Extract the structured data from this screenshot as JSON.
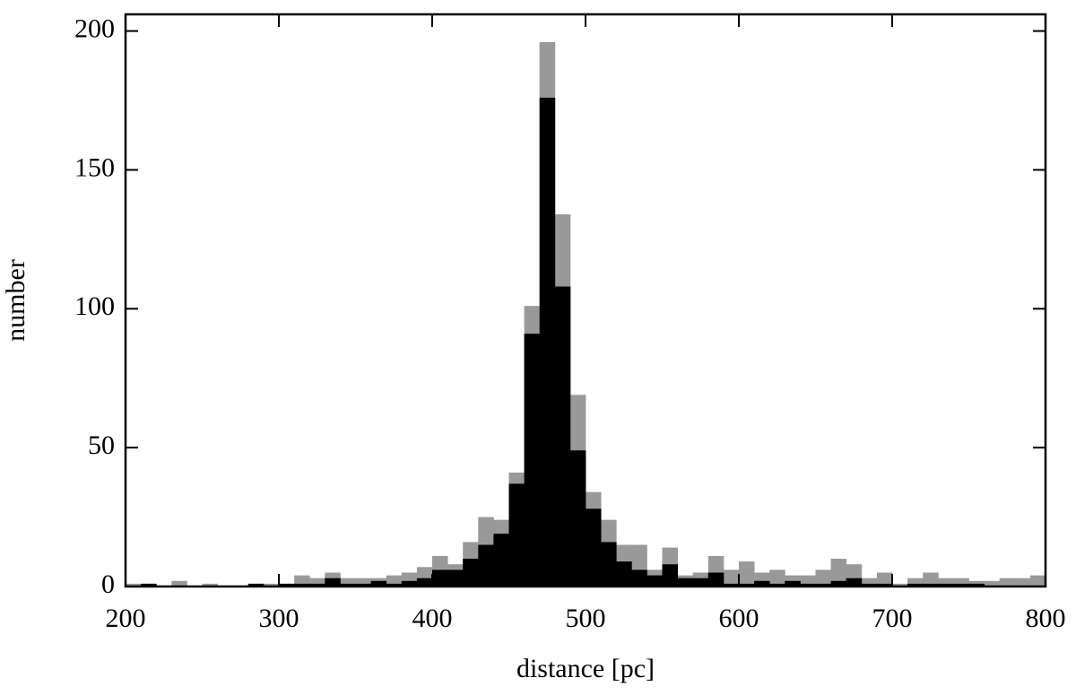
{
  "chart_data": {
    "type": "histogram",
    "xlabel": "distance [pc]",
    "ylabel": "number",
    "bins": [
      200,
      210,
      220,
      230,
      240,
      250,
      260,
      270,
      280,
      290,
      300,
      310,
      320,
      330,
      340,
      350,
      360,
      370,
      380,
      390,
      400,
      410,
      420,
      430,
      440,
      450,
      460,
      470,
      480,
      490,
      500,
      510,
      520,
      530,
      540,
      550,
      560,
      570,
      580,
      590,
      600,
      610,
      620,
      630,
      640,
      650,
      660,
      670,
      680,
      690,
      700,
      710,
      720,
      730,
      740,
      750,
      760,
      770,
      780,
      790,
      800
    ],
    "series": [
      {
        "color": "#999999",
        "values": [
          1,
          1,
          0,
          2,
          0,
          1,
          0,
          0,
          1,
          1,
          1,
          4,
          3,
          5,
          3,
          3,
          3,
          4,
          5,
          7,
          11,
          8,
          16,
          25,
          24,
          41,
          101,
          196,
          134,
          69,
          34,
          24,
          15,
          15,
          6,
          14,
          4,
          5,
          11,
          6,
          9,
          5,
          6,
          4,
          4,
          6,
          10,
          8,
          3,
          5,
          1,
          3,
          5,
          3,
          3,
          2,
          2,
          3,
          3,
          4
        ]
      },
      {
        "color": "#000000",
        "values": [
          0,
          1,
          0,
          0,
          0,
          0,
          0,
          0,
          1,
          0,
          1,
          1,
          1,
          3,
          1,
          1,
          2,
          1,
          2,
          3,
          6,
          6,
          10,
          15,
          19,
          37,
          91,
          176,
          108,
          49,
          28,
          16,
          9,
          6,
          4,
          8,
          3,
          3,
          5,
          1,
          1,
          2,
          1,
          2,
          1,
          1,
          2,
          3,
          1,
          1,
          0,
          1,
          1,
          1,
          1,
          1,
          0,
          0,
          0,
          0
        ]
      }
    ],
    "xlim": [
      200,
      800
    ],
    "ylim": [
      0,
      206
    ],
    "xticks": [
      200,
      300,
      400,
      500,
      600,
      700,
      800
    ],
    "yticks": [
      0,
      50,
      100,
      150,
      200
    ]
  }
}
